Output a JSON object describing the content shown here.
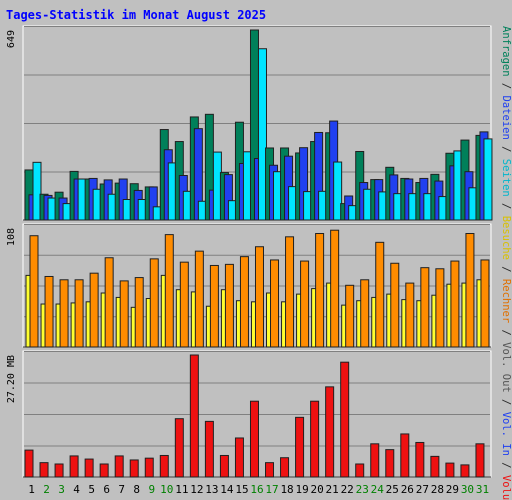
{
  "chart_data": {
    "type": "bar",
    "title": "Tages-Statistik im Monat August 2025",
    "categories": [
      "1",
      "2",
      "3",
      "4",
      "5",
      "6",
      "7",
      "8",
      "9",
      "10",
      "11",
      "12",
      "13",
      "14",
      "15",
      "16",
      "17",
      "18",
      "19",
      "20",
      "21",
      "22",
      "23",
      "24",
      "25",
      "26",
      "27",
      "28",
      "29",
      "30",
      "31"
    ],
    "weekend_days": [
      "2",
      "3",
      "9",
      "10",
      "16",
      "17",
      "23",
      "24",
      "30",
      "31"
    ],
    "panels": [
      {
        "id": "top",
        "ymax_label": "649",
        "ylim": [
          0,
          649
        ],
        "series": [
          {
            "name": "Anfragen",
            "color": "#00805a",
            "values": [
              171,
              88,
              95,
              166,
              140,
              123,
              126,
              124,
              113,
              309,
              268,
              352,
              361,
              162,
              334,
              649,
              246,
              246,
              229,
              268,
              298,
              56,
              234,
              138,
              180,
              142,
              128,
              156,
              228,
              273,
              289
            ]
          },
          {
            "name": "Dateien",
            "color": "#2040f0",
            "values": [
              86,
              84,
              75,
              140,
              142,
              137,
              140,
              101,
              113,
              240,
              152,
              312,
              102,
              155,
              193,
              210,
              187,
              218,
              247,
              299,
              338,
              82,
              128,
              138,
              154,
              140,
              142,
              133,
              185,
              165,
              301
            ]
          },
          {
            "name": "Seiten",
            "color": "#00e5ff",
            "values": [
              197,
              75,
              56,
              140,
              105,
              88,
              70,
              70,
              45,
              195,
              98,
              64,
              232,
              66,
              233,
              585,
              165,
              114,
              97,
              98,
              198,
              49,
              105,
              96,
              90,
              90,
              90,
              80,
              236,
              110,
              277
            ]
          }
        ]
      },
      {
        "id": "mid",
        "ymax_label": "108",
        "ylim": [
          0,
          108
        ],
        "series": [
          {
            "name": "Besuche",
            "color": "#ffff30",
            "values": [
              65,
              39,
              39,
              40,
              41,
              49,
              45,
              36,
              44,
              65,
              52,
              50,
              37,
              52,
              42,
              41,
              49,
              41,
              48,
              53,
              58,
              38,
              42,
              45,
              48,
              43,
              42,
              47,
              57,
              58,
              61
            ]
          },
          {
            "name": "Rechner",
            "color": "#ff8c00",
            "values": [
              101,
              64,
              61,
              61,
              67,
              81,
              60,
              63,
              80,
              102,
              77,
              87,
              74,
              75,
              82,
              91,
              79,
              100,
              78,
              103,
              106,
              56,
              61,
              95,
              76,
              58,
              72,
              71,
              78,
              103,
              79
            ]
          }
        ]
      },
      {
        "id": "bottom",
        "ymax_label": "27.20 MB",
        "ylim": [
          0,
          27.2
        ],
        "series": [
          {
            "name": "Volumen",
            "color": "#ee1111",
            "values": [
              6.0,
              3.2,
              2.9,
              4.7,
              4.0,
              2.9,
              4.7,
              3.8,
              4.2,
              4.8,
              13.0,
              27.2,
              12.4,
              4.8,
              8.7,
              16.9,
              3.2,
              4.3,
              13.3,
              16.9,
              20.1,
              25.6,
              2.9,
              7.4,
              6.1,
              9.6,
              7.7,
              4.6,
              3.1,
              2.7,
              7.4
            ]
          }
        ]
      }
    ],
    "right_legend": [
      {
        "label": "Anfragen",
        "color": "#00805a"
      },
      {
        "label": "/",
        "color": "#2b2b2b"
      },
      {
        "label": "Dateien",
        "color": "#2040f0"
      },
      {
        "label": "/",
        "color": "#2b2b2b"
      },
      {
        "label": "Seiten",
        "color": "#00b5cc"
      },
      {
        "label": "/",
        "color": "#2b2b2b"
      },
      {
        "label": "Besuche",
        "color": "#d8c000"
      },
      {
        "label": "/",
        "color": "#2b2b2b"
      },
      {
        "label": "Rechner",
        "color": "#e07000"
      },
      {
        "label": "/",
        "color": "#2b2b2b"
      },
      {
        "label": "Vol. Out",
        "color": "#555555"
      },
      {
        "label": "/",
        "color": "#2b2b2b"
      },
      {
        "label": "Vol. In",
        "color": "#2040f0"
      },
      {
        "label": "/",
        "color": "#2b2b2b"
      },
      {
        "label": "Volumen",
        "color": "#ee1111"
      }
    ],
    "colors": {
      "background": "#c0c0c0",
      "title": "#0000ff",
      "weekday_label": "#000000",
      "weekend_label": "#008000",
      "gridline": "#808080"
    }
  }
}
